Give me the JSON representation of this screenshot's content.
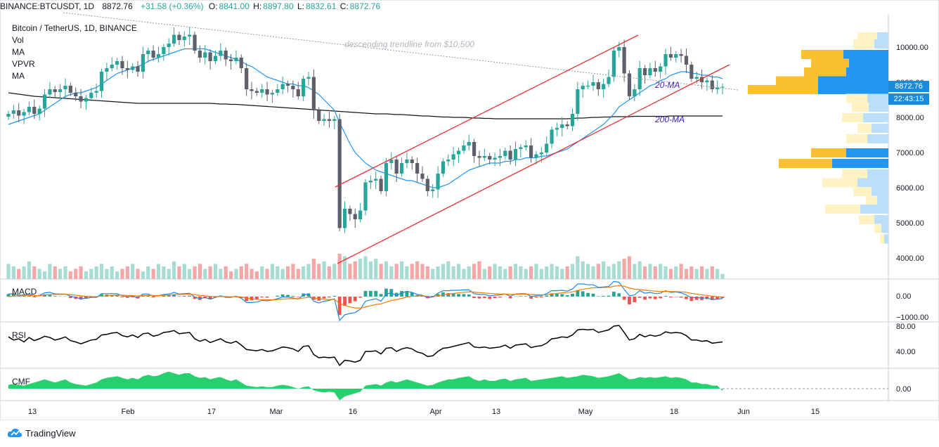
{
  "header": {
    "symbol": "BINANCE:BTCUSDT, 1D",
    "price": "8872.76",
    "change": "+31.58 (+0.36%)",
    "o_label": "O:",
    "o": "8841.00",
    "h_label": "H:",
    "h": "8897.80",
    "l_label": "L:",
    "l": "8832.61",
    "c_label": "C:",
    "c": "8872.76"
  },
  "legend": {
    "title": "Bitcoin / TetherUS, 1D, BINANCE",
    "items": [
      "Vol",
      "MA",
      "VPVR",
      "MA"
    ]
  },
  "annotations": {
    "trendline": "descending trendline from $10,500",
    "ma20": "20-MA",
    "ma200": "200-MA"
  },
  "price_tags": {
    "last": "8872.76",
    "countdown": "22:43:15"
  },
  "panes": {
    "macd": "MACD",
    "rsi": "RSI",
    "cmf": "CMF"
  },
  "footer": {
    "brand": "TradingView"
  },
  "colors": {
    "up": "#53b9a6",
    "down": "#d5d5d5",
    "candle_down": "#5d606b",
    "channel": "#e8302f",
    "ma20": "#2196f3",
    "ma200": "#131722",
    "macd": "#1e88e5",
    "signal": "#f57c00",
    "cmf": "#00c853",
    "vpvr_buy": "#2196f3",
    "vpvr_sell": "#fdd835"
  },
  "chart_data": {
    "type": "candlestick",
    "title": "Bitcoin / TetherUS, 1D, BINANCE",
    "x_ticks": [
      "13",
      "Feb",
      "17",
      "Mar",
      "16",
      "Apr",
      "13",
      "May",
      "18",
      "Jun",
      "15"
    ],
    "y_ticks": [
      "10000.00",
      "9000.00",
      "8000.00",
      "7000.00",
      "6000.00",
      "5000.00",
      "4000.00"
    ],
    "ylim": [
      3500,
      10800
    ],
    "closes": [
      8100,
      8200,
      8050,
      8150,
      8300,
      8100,
      8250,
      8650,
      8800,
      8720,
      8800,
      8900,
      8700,
      8600,
      8450,
      8550,
      8700,
      8750,
      9300,
      9400,
      9500,
      9600,
      9400,
      9350,
      9450,
      9300,
      9800,
      9900,
      9700,
      9800,
      10000,
      10100,
      10350,
      10200,
      10300,
      10350,
      9900,
      9700,
      9850,
      9600,
      9750,
      9900,
      9650,
      9600,
      9700,
      9400,
      8800,
      8750,
      8700,
      8800,
      8650,
      8700,
      8800,
      8950,
      8900,
      8800,
      8600,
      9100,
      9150,
      8200,
      7900,
      7950,
      7900,
      7950,
      4850,
      5400,
      5250,
      5100,
      5350,
      6150,
      6200,
      6250,
      5900,
      6700,
      6800,
      6400,
      6700,
      6800,
      6700,
      6400,
      6250,
      5900,
      5950,
      6400,
      6750,
      6800,
      6950,
      7050,
      7200,
      7300,
      6900,
      6850,
      6900,
      6800,
      6850,
      6900,
      7050,
      6800,
      7100,
      7150,
      7200,
      6850,
      6950,
      7000,
      7250,
      7650,
      7700,
      7800,
      7750,
      8100,
      8800,
      8900,
      8900,
      9000,
      8800,
      8950,
      9150,
      9900,
      10000,
      9250,
      8600,
      8800,
      9400,
      9200,
      9400,
      9300,
      9450,
      9800,
      9700,
      9800,
      9750,
      9500,
      9100,
      9150,
      9000,
      9050,
      8800,
      8850,
      8872
    ],
    "ma20": [
      7800,
      7850,
      7900,
      7950,
      8000,
      8050,
      8100,
      8200,
      8300,
      8400,
      8500,
      8600,
      8650,
      8700,
      8700,
      8750,
      8800,
      8850,
      8950,
      9050,
      9150,
      9250,
      9300,
      9350,
      9400,
      9450,
      9500,
      9600,
      9650,
      9700,
      9750,
      9800,
      9850,
      9900,
      9950,
      9950,
      9950,
      9950,
      9950,
      9900,
      9850,
      9800,
      9750,
      9700,
      9650,
      9600,
      9500,
      9450,
      9350,
      9250,
      9150,
      9100,
      9050,
      9000,
      8950,
      8950,
      8900,
      8900,
      8850,
      8750,
      8650,
      8500,
      8350,
      8200,
      7850,
      7550,
      7250,
      7000,
      6850,
      6700,
      6600,
      6500,
      6450,
      6400,
      6350,
      6300,
      6250,
      6200,
      6200,
      6150,
      6100,
      6050,
      6000,
      6000,
      6050,
      6100,
      6200,
      6300,
      6400,
      6500,
      6550,
      6600,
      6650,
      6700,
      6700,
      6700,
      6750,
      6750,
      6800,
      6800,
      6850,
      6850,
      6850,
      6900,
      6900,
      6950,
      7000,
      7050,
      7100,
      7200,
      7300,
      7400,
      7500,
      7600,
      7700,
      7800,
      7950,
      8100,
      8300,
      8400,
      8500,
      8600,
      8700,
      8800,
      8900,
      8950,
      9050,
      9100,
      9200,
      9250,
      9300,
      9300,
      9250,
      9250,
      9200,
      9200,
      9150,
      9150,
      9100
    ],
    "ma200": [
      8700,
      8680,
      8660,
      8640,
      8620,
      8600,
      8590,
      8580,
      8570,
      8560,
      8550,
      8540,
      8530,
      8520,
      8510,
      8500,
      8490,
      8480,
      8470,
      8460,
      8450,
      8440,
      8430,
      8420,
      8410,
      8400,
      8400,
      8400,
      8400,
      8400,
      8400,
      8400,
      8400,
      8400,
      8400,
      8400,
      8400,
      8400,
      8400,
      8400,
      8390,
      8380,
      8380,
      8370,
      8370,
      8360,
      8350,
      8340,
      8330,
      8320,
      8310,
      8300,
      8290,
      8280,
      8270,
      8260,
      8250,
      8240,
      8230,
      8220,
      8210,
      8200,
      8190,
      8180,
      8170,
      8160,
      8150,
      8140,
      8130,
      8120,
      8110,
      8100,
      8100,
      8100,
      8090,
      8080,
      8080,
      8070,
      8060,
      8050,
      8040,
      8040,
      8030,
      8020,
      8010,
      8010,
      8000,
      8000,
      8000,
      7990,
      7980,
      7980,
      7970,
      7970,
      7960,
      7960,
      7960,
      7960,
      7960,
      7960,
      7960,
      7960,
      7960,
      7960,
      7960,
      7960,
      7960,
      7960,
      7960,
      7970,
      7980,
      7980,
      7990,
      8000,
      8000,
      8010,
      8010,
      8020,
      8020,
      8020,
      8020,
      8030,
      8030,
      8030,
      8030,
      8030,
      8030,
      8030,
      8040,
      8040,
      8040,
      8040,
      8040,
      8040,
      8040,
      8040,
      8040,
      8040,
      8040
    ],
    "volume_relative": [
      0.6,
      0.5,
      0.4,
      0.5,
      0.7,
      0.5,
      0.4,
      0.3,
      0.6,
      0.5,
      0.4,
      0.5,
      0.3,
      0.4,
      0.5,
      0.3,
      0.4,
      0.5,
      0.6,
      0.4,
      0.5,
      0.3,
      0.4,
      0.5,
      0.6,
      0.4,
      0.3,
      0.5,
      0.4,
      0.6,
      0.5,
      0.4,
      0.7,
      0.5,
      0.6,
      0.4,
      0.5,
      0.6,
      0.4,
      0.5,
      0.6,
      0.4,
      0.5,
      0.3,
      0.4,
      0.5,
      0.6,
      0.4,
      0.3,
      0.5,
      0.4,
      0.6,
      0.5,
      0.4,
      0.5,
      0.6,
      0.4,
      0.5,
      0.6,
      0.8,
      0.6,
      0.7,
      0.5,
      0.6,
      1.0,
      0.9,
      0.6,
      0.7,
      0.8,
      0.9,
      0.7,
      0.8,
      0.6,
      0.7,
      0.5,
      0.6,
      0.7,
      0.5,
      0.6,
      0.7,
      0.6,
      0.5,
      0.4,
      0.5,
      0.6,
      0.7,
      0.5,
      0.6,
      0.4,
      0.5,
      0.6,
      0.7,
      0.4,
      0.5,
      0.6,
      0.5,
      0.4,
      0.5,
      0.6,
      0.5,
      0.4,
      0.5,
      0.6,
      0.4,
      0.5,
      0.6,
      0.5,
      0.4,
      0.5,
      0.6,
      0.9,
      0.7,
      0.6,
      0.5,
      0.6,
      0.7,
      0.5,
      0.6,
      0.7,
      0.8,
      0.9,
      0.6,
      0.7,
      0.5,
      0.6,
      0.5,
      0.6,
      0.5,
      0.4,
      0.5,
      0.6,
      0.4,
      0.5,
      0.4,
      0.5,
      0.4,
      0.5,
      0.4,
      0.2
    ],
    "vpvr_levels": [
      {
        "price": 10300,
        "total": 0.22,
        "buy": 0.08
      },
      {
        "price": 10100,
        "total": 0.25,
        "buy": 0.1
      },
      {
        "price": 9800,
        "total": 0.62,
        "buy": 0.32
      },
      {
        "price": 9550,
        "total": 0.55,
        "buy": 0.28
      },
      {
        "price": 9300,
        "total": 0.6,
        "buy": 0.3
      },
      {
        "price": 9050,
        "total": 0.8,
        "buy": 0.5
      },
      {
        "price": 8800,
        "total": 1.0,
        "buy": 0.5
      },
      {
        "price": 8550,
        "total": 0.3,
        "buy": 0.15
      },
      {
        "price": 8300,
        "total": 0.26,
        "buy": 0.14
      },
      {
        "price": 8000,
        "total": 0.33,
        "buy": 0.18
      },
      {
        "price": 7700,
        "total": 0.22,
        "buy": 0.12
      },
      {
        "price": 7400,
        "total": 0.3,
        "buy": 0.15
      },
      {
        "price": 7000,
        "total": 0.55,
        "buy": 0.3
      },
      {
        "price": 6700,
        "total": 0.78,
        "buy": 0.4
      },
      {
        "price": 6400,
        "total": 0.33,
        "buy": 0.15
      },
      {
        "price": 6150,
        "total": 0.47,
        "buy": 0.22
      },
      {
        "price": 5900,
        "total": 0.25,
        "buy": 0.12
      },
      {
        "price": 5650,
        "total": 0.16,
        "buy": 0.08
      },
      {
        "price": 5400,
        "total": 0.45,
        "buy": 0.2
      },
      {
        "price": 5100,
        "total": 0.21,
        "buy": 0.1
      },
      {
        "price": 4850,
        "total": 0.1,
        "buy": 0.05
      },
      {
        "price": 4550,
        "total": 0.06,
        "buy": 0.03
      }
    ],
    "macd_ticks": [
      "0.00",
      "−1000.00"
    ],
    "rsi_ticks": [
      "80.00",
      "40.00"
    ],
    "cmf_ticks": [
      "0.00"
    ],
    "rsi": [
      63,
      58,
      60,
      55,
      62,
      57,
      60,
      64,
      62,
      58,
      60,
      63,
      57,
      55,
      52,
      55,
      58,
      59,
      66,
      67,
      69,
      70,
      65,
      63,
      66,
      62,
      68,
      69,
      64,
      66,
      70,
      71,
      73,
      68,
      69,
      70,
      60,
      56,
      59,
      54,
      57,
      60,
      55,
      53,
      56,
      50,
      43,
      42,
      41,
      43,
      40,
      41,
      44,
      47,
      46,
      44,
      40,
      48,
      49,
      35,
      30,
      31,
      30,
      31,
      18,
      26,
      25,
      23,
      26,
      40,
      40,
      41,
      36,
      45,
      46,
      40,
      44,
      46,
      44,
      39,
      37,
      32,
      33,
      40,
      45,
      46,
      48,
      50,
      52,
      54,
      47,
      46,
      47,
      45,
      46,
      47,
      50,
      45,
      50,
      51,
      52,
      46,
      48,
      49,
      53,
      60,
      61,
      63,
      62,
      66,
      74,
      75,
      74,
      75,
      70,
      72,
      74,
      80,
      81,
      70,
      58,
      60,
      67,
      63,
      66,
      64,
      66,
      71,
      69,
      70,
      69,
      65,
      58,
      58,
      56,
      57,
      53,
      54,
      55
    ],
    "cmf": [
      0.05,
      0.06,
      0.05,
      0.04,
      0.06,
      0.08,
      0.1,
      0.12,
      0.1,
      0.08,
      0.1,
      0.12,
      0.08,
      0.06,
      0.05,
      0.04,
      0.06,
      0.08,
      0.12,
      0.14,
      0.15,
      0.16,
      0.14,
      0.12,
      0.14,
      0.12,
      0.16,
      0.18,
      0.16,
      0.17,
      0.2,
      0.22,
      0.2,
      0.18,
      0.2,
      0.2,
      0.16,
      0.14,
      0.15,
      0.12,
      0.14,
      0.15,
      0.12,
      0.1,
      0.12,
      0.08,
      0.04,
      0.03,
      0.02,
      0.03,
      0.02,
      0.02,
      0.04,
      0.05,
      0.04,
      0.02,
      0.0,
      0.02,
      0.03,
      -0.02,
      -0.04,
      -0.05,
      -0.04,
      -0.05,
      -0.15,
      -0.1,
      -0.08,
      -0.06,
      -0.04,
      0.04,
      0.05,
      0.06,
      0.04,
      0.08,
      0.1,
      0.08,
      0.1,
      0.12,
      0.1,
      0.08,
      0.06,
      0.04,
      0.05,
      0.08,
      0.1,
      0.12,
      0.12,
      0.14,
      0.15,
      0.16,
      0.12,
      0.1,
      0.12,
      0.1,
      0.1,
      0.12,
      0.13,
      0.1,
      0.12,
      0.13,
      0.14,
      0.1,
      0.11,
      0.12,
      0.13,
      0.14,
      0.15,
      0.16,
      0.14,
      0.15,
      0.16,
      0.18,
      0.17,
      0.16,
      0.14,
      0.15,
      0.16,
      0.18,
      0.2,
      0.16,
      0.12,
      0.13,
      0.15,
      0.14,
      0.15,
      0.14,
      0.15,
      0.16,
      0.14,
      0.15,
      0.14,
      0.12,
      0.08,
      0.08,
      0.06,
      0.06,
      0.04,
      0.04,
      -0.03
    ]
  }
}
